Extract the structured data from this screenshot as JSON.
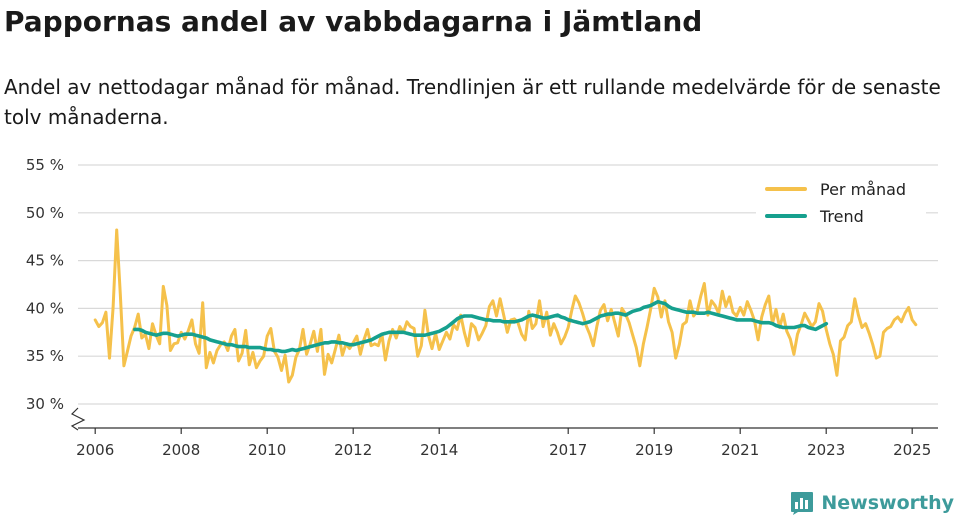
{
  "title": "Pappornas andel av vabbdagarna i Jämtland",
  "subtitle": "Andel av nettodagar månad för månad. Trendlinjen är ett rullande medelvärde för de senaste tolv månaderna.",
  "brand": {
    "name": "Newsworthy",
    "icon": "newsworthy-logo-icon"
  },
  "colors": {
    "per_month": "#f5c14b",
    "trend": "#16a08e",
    "grid": "#d9d9d9",
    "axis": "#333333"
  },
  "chart_data": {
    "type": "line",
    "title": "Pappornas andel av vabbdagarna i Jämtland",
    "xlabel": "",
    "ylabel": "",
    "ylim": [
      30,
      55
    ],
    "xlim": [
      2005.6,
      2025.6
    ],
    "grid": true,
    "legend_position": "top-right",
    "y_ticks": [
      30,
      35,
      40,
      45,
      50,
      55
    ],
    "y_tick_labels": [
      "30 %",
      "35 %",
      "40 %",
      "45 %",
      "50 %",
      "55 %"
    ],
    "x_ticks": [
      2006,
      2008,
      2010,
      2012,
      2014,
      2017,
      2019,
      2021,
      2023,
      2025
    ],
    "x_tick_labels": [
      "2006",
      "2008",
      "2010",
      "2012",
      "2014",
      "2017",
      "2019",
      "2021",
      "2023",
      "2025"
    ],
    "series": [
      {
        "name": "Per månad",
        "start": 2006.0,
        "step": 0.08333,
        "values": [
          38.8,
          38.1,
          38.5,
          39.6,
          34.8,
          40.1,
          48.2,
          41.5,
          34.0,
          35.5,
          37.1,
          38.0,
          39.4,
          36.9,
          37.3,
          35.8,
          38.4,
          37.2,
          36.3,
          42.3,
          40.3,
          35.6,
          36.3,
          36.4,
          37.5,
          36.8,
          37.7,
          38.8,
          36.3,
          35.3,
          40.6,
          33.8,
          35.4,
          34.3,
          35.6,
          36.2,
          36.5,
          35.6,
          37.1,
          37.8,
          34.5,
          35.3,
          37.7,
          34.1,
          35.4,
          33.8,
          34.5,
          35.0,
          37.1,
          37.9,
          35.5,
          34.9,
          33.5,
          35.1,
          32.3,
          33.0,
          34.9,
          35.7,
          37.8,
          35.2,
          36.3,
          37.6,
          35.5,
          37.8,
          33.1,
          35.2,
          34.3,
          35.7,
          37.2,
          35.1,
          36.3,
          35.8,
          36.4,
          37.1,
          35.2,
          36.7,
          37.8,
          36.1,
          36.3,
          36.1,
          37.3,
          34.6,
          36.6,
          37.8,
          36.9,
          38.1,
          37.5,
          38.6,
          38.1,
          37.9,
          35.0,
          36.1,
          39.8,
          37.2,
          35.8,
          37.4,
          35.7,
          36.6,
          37.5,
          36.8,
          38.3,
          37.8,
          39.3,
          37.5,
          36.1,
          38.4,
          38.0,
          36.7,
          37.4,
          38.2,
          40.2,
          40.8,
          39.2,
          41.0,
          39.3,
          37.5,
          38.8,
          38.9,
          38.5,
          37.3,
          36.7,
          39.7,
          37.9,
          38.4,
          40.8,
          38.1,
          39.6,
          37.2,
          38.4,
          37.5,
          36.3,
          37.0,
          38.0,
          39.8,
          41.3,
          40.6,
          39.5,
          38.2,
          37.3,
          36.1,
          38.1,
          39.8,
          40.4,
          38.7,
          39.9,
          38.5,
          37.1,
          40.0,
          39.4,
          38.5,
          37.2,
          35.9,
          34.0,
          36.3,
          38.0,
          39.9,
          42.1,
          41.2,
          39.1,
          40.8,
          38.6,
          37.5,
          34.8,
          36.2,
          38.3,
          38.6,
          40.8,
          39.2,
          39.7,
          41.3,
          42.6,
          39.3,
          40.8,
          40.3,
          39.5,
          41.8,
          40.2,
          41.2,
          39.6,
          39.2,
          40.1,
          39.3,
          40.7,
          39.8,
          38.7,
          36.7,
          39.1,
          40.4,
          41.3,
          38.4,
          39.9,
          38.0,
          39.4,
          37.6,
          36.8,
          35.2,
          37.3,
          38.3,
          39.5,
          38.8,
          38.1,
          38.6,
          40.5,
          39.7,
          37.8,
          36.3,
          35.2,
          33.0,
          36.6,
          37.0,
          38.2,
          38.6,
          41.0,
          39.3,
          38.0,
          38.4,
          37.4,
          36.2,
          34.8,
          35.0,
          37.5,
          37.9,
          38.1,
          38.8,
          39.1,
          38.6,
          39.5,
          40.1,
          38.8,
          38.3
        ]
      },
      {
        "name": "Trend",
        "start": 2006.92,
        "step": 0.08333,
        "values": [
          37.8,
          37.8,
          37.7,
          37.5,
          37.4,
          37.3,
          37.2,
          37.3,
          37.4,
          37.4,
          37.3,
          37.2,
          37.1,
          37.2,
          37.3,
          37.3,
          37.3,
          37.2,
          37.1,
          37.0,
          36.9,
          36.7,
          36.6,
          36.5,
          36.4,
          36.3,
          36.2,
          36.2,
          36.1,
          36.0,
          36.0,
          36.0,
          35.9,
          35.9,
          35.9,
          35.9,
          35.8,
          35.7,
          35.7,
          35.6,
          35.6,
          35.5,
          35.5,
          35.6,
          35.7,
          35.6,
          35.7,
          35.8,
          35.9,
          36.0,
          36.1,
          36.2,
          36.3,
          36.4,
          36.4,
          36.5,
          36.5,
          36.4,
          36.4,
          36.3,
          36.2,
          36.2,
          36.3,
          36.4,
          36.5,
          36.6,
          36.7,
          36.9,
          37.1,
          37.3,
          37.4,
          37.5,
          37.5,
          37.5,
          37.5,
          37.5,
          37.4,
          37.3,
          37.2,
          37.2,
          37.2,
          37.2,
          37.3,
          37.4,
          37.5,
          37.6,
          37.8,
          38.0,
          38.3,
          38.6,
          38.9,
          39.1,
          39.2,
          39.2,
          39.2,
          39.1,
          39.0,
          38.9,
          38.8,
          38.8,
          38.7,
          38.7,
          38.7,
          38.6,
          38.6,
          38.6,
          38.6,
          38.7,
          38.8,
          39.0,
          39.2,
          39.3,
          39.2,
          39.1,
          39.0,
          39.0,
          39.1,
          39.2,
          39.3,
          39.1,
          39.0,
          38.8,
          38.7,
          38.6,
          38.5,
          38.4,
          38.5,
          38.6,
          38.8,
          39.0,
          39.2,
          39.3,
          39.4,
          39.4,
          39.5,
          39.5,
          39.4,
          39.3,
          39.5,
          39.7,
          39.8,
          39.9,
          40.1,
          40.2,
          40.3,
          40.5,
          40.7,
          40.6,
          40.5,
          40.2,
          40.0,
          39.9,
          39.8,
          39.7,
          39.6,
          39.6,
          39.6,
          39.5,
          39.5,
          39.5,
          39.6,
          39.5,
          39.4,
          39.3,
          39.2,
          39.1,
          39.0,
          38.9,
          38.8,
          38.8,
          38.8,
          38.8,
          38.8,
          38.7,
          38.6,
          38.5,
          38.5,
          38.5,
          38.4,
          38.2,
          38.1,
          38.0,
          38.0,
          38.0,
          38.0,
          38.1,
          38.2,
          38.2,
          38.0,
          37.9,
          37.8,
          38.0,
          38.2,
          38.4
        ]
      }
    ]
  }
}
